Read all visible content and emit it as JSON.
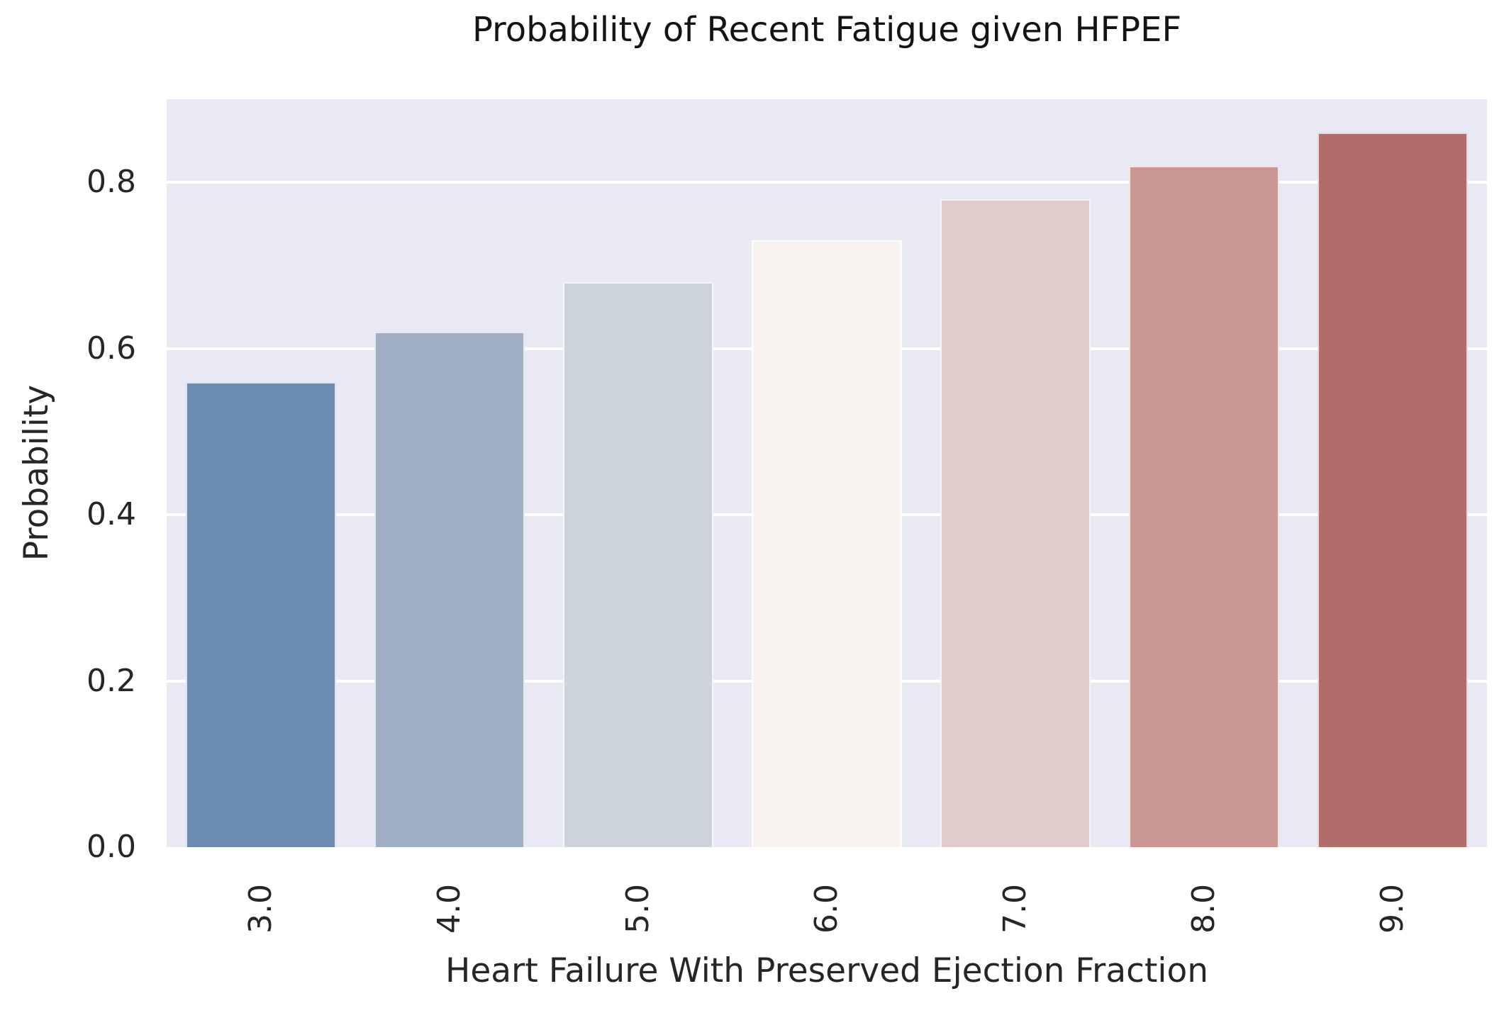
{
  "chart_data": {
    "type": "bar",
    "title": "Probability of Recent Fatigue given HFPEF",
    "xlabel": "Heart Failure With Preserved Ejection Fraction",
    "ylabel": "Probability",
    "categories": [
      "3.0",
      "4.0",
      "5.0",
      "6.0",
      "7.0",
      "8.0",
      "9.0"
    ],
    "values": [
      0.56,
      0.62,
      0.68,
      0.73,
      0.78,
      0.82,
      0.86
    ],
    "bar_colors": [
      "#6B8BB1",
      "#A0AFC4",
      "#CDD3DB",
      "#F9F3F0",
      "#E2CCCB",
      "#CA9795",
      "#B16D6B"
    ],
    "yticks": [
      0.0,
      0.2,
      0.4,
      0.6,
      0.8
    ],
    "ytick_labels": [
      "0.0",
      "0.2",
      "0.4",
      "0.6",
      "0.8"
    ],
    "ylim": [
      0,
      0.9
    ],
    "xtick_rotation_deg": 90,
    "grid": "horizontal",
    "legend": "none",
    "plot_background": "#E8E9F2",
    "gridline_color": "#FFFFFF",
    "text_color": "#262626"
  }
}
